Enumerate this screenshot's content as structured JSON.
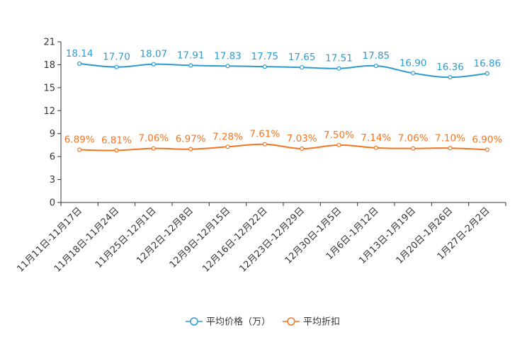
{
  "chart_data": {
    "type": "line",
    "categories": [
      "11月11日-11月17日",
      "11月18日-11月24日",
      "11月25日-12月1日",
      "12月2日-12月8日",
      "12月9日-12月15日",
      "12月16日-12月22日",
      "12月23日-12月29日",
      "12月30日-1月5日",
      "1月6日-1月12日",
      "1月13日-1月19日",
      "1月20日-1月26日",
      "1月27日-2月2日"
    ],
    "ylim": [
      0,
      21
    ],
    "yticks": [
      0,
      3,
      6,
      9,
      12,
      15,
      18,
      21
    ],
    "grid": false,
    "legend_position": "bottom",
    "series": [
      {
        "name": "平均价格（万）",
        "color": "#2e9bce",
        "values": [
          18.14,
          17.7,
          18.07,
          17.91,
          17.83,
          17.75,
          17.65,
          17.51,
          17.85,
          16.9,
          16.36,
          16.86
        ],
        "labels": [
          "18.14",
          "17.70",
          "18.07",
          "17.91",
          "17.83",
          "17.75",
          "17.65",
          "17.51",
          "17.85",
          "16.90",
          "16.36",
          "16.86"
        ]
      },
      {
        "name": "平均折扣",
        "color": "#f57421",
        "values": [
          6.89,
          6.81,
          7.06,
          6.97,
          7.28,
          7.61,
          7.03,
          7.5,
          7.14,
          7.06,
          7.1,
          6.9
        ],
        "labels": [
          "6.89%",
          "6.81%",
          "7.06%",
          "6.97%",
          "7.28%",
          "7.61%",
          "7.03%",
          "7.50%",
          "7.14%",
          "7.06%",
          "7.10%",
          "6.90%"
        ]
      }
    ]
  }
}
